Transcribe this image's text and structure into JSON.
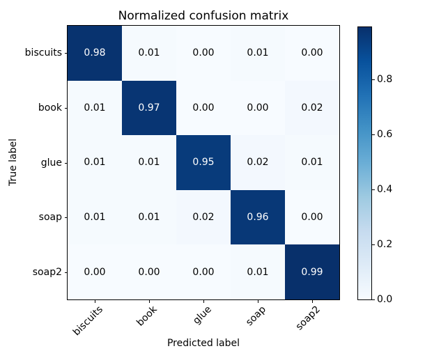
{
  "chart_data": {
    "type": "heatmap",
    "title": "Normalized confusion matrix",
    "xlabel": "Predicted label",
    "ylabel": "True label",
    "categories": [
      "biscuits",
      "book",
      "glue",
      "soap",
      "soap2"
    ],
    "matrix": [
      [
        0.98,
        0.01,
        0.0,
        0.01,
        0.0
      ],
      [
        0.01,
        0.97,
        0.0,
        0.0,
        0.02
      ],
      [
        0.01,
        0.01,
        0.95,
        0.02,
        0.01
      ],
      [
        0.01,
        0.01,
        0.02,
        0.96,
        0.0
      ],
      [
        0.0,
        0.0,
        0.0,
        0.01,
        0.99
      ]
    ],
    "value_format_decimals": 2,
    "vmin": 0.0,
    "vmax": 0.99,
    "colormap": "Blues",
    "colormap_stops": [
      "#f7fbff",
      "#deebf7",
      "#c6dbef",
      "#9ecae1",
      "#6baed6",
      "#4292c6",
      "#2171b5",
      "#08519c",
      "#08306b"
    ],
    "cell_text_color_light_bg": "#000000",
    "cell_text_color_dark_bg": "#ffffff",
    "colorbar_ticks": [
      0.0,
      0.2,
      0.4,
      0.6,
      0.8
    ],
    "colorbar_tick_labels": [
      "0.0",
      "0.2",
      "0.4",
      "0.6",
      "0.8"
    ],
    "axis_color": "#000000",
    "background_color": "#ffffff",
    "legend_position": "colorbar-right",
    "grid": false
  }
}
